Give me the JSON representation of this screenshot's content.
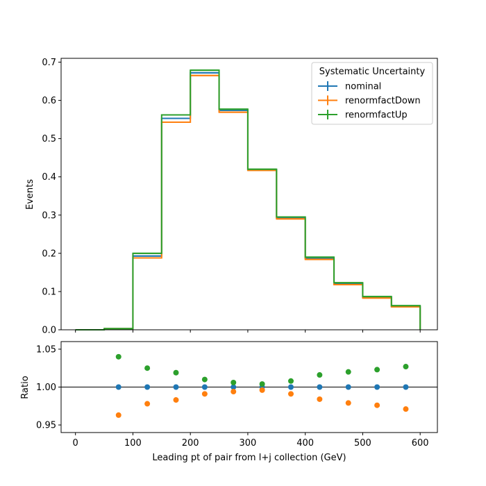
{
  "chart_data": [
    {
      "type": "line",
      "panel": "main",
      "ylabel": "Events",
      "xlabel": "",
      "xlim": [
        -25,
        630
      ],
      "ylim": [
        0,
        0.71
      ],
      "grid": false,
      "legend": {
        "title": "Systematic Uncertainty",
        "placement": "top-right"
      },
      "bin_edges": [
        0,
        50,
        100,
        150,
        200,
        250,
        300,
        350,
        400,
        450,
        500,
        550,
        600
      ],
      "x_ticks": [
        0,
        100,
        200,
        300,
        400,
        500,
        600
      ],
      "y_ticks": [
        0.0,
        0.1,
        0.2,
        0.3,
        0.4,
        0.5,
        0.6,
        0.7
      ],
      "y_tick_labels": [
        "0.0",
        "0.1",
        "0.2",
        "0.3",
        "0.4",
        "0.5",
        "0.6",
        "0.7"
      ],
      "series": [
        {
          "name": "nominal",
          "color": "#1f77b4",
          "values": [
            0.0,
            0.003,
            0.193,
            0.553,
            0.672,
            0.574,
            0.419,
            0.293,
            0.187,
            0.12,
            0.085,
            0.061
          ]
        },
        {
          "name": "renormfactDown",
          "color": "#ff7f0e",
          "values": [
            0.0,
            0.003,
            0.188,
            0.543,
            0.665,
            0.569,
            0.417,
            0.29,
            0.184,
            0.118,
            0.083,
            0.06
          ]
        },
        {
          "name": "renormfactUp",
          "color": "#2ca02c",
          "values": [
            0.0,
            0.003,
            0.2,
            0.562,
            0.679,
            0.577,
            0.42,
            0.295,
            0.19,
            0.123,
            0.087,
            0.063
          ]
        }
      ]
    },
    {
      "type": "scatter",
      "panel": "ratio",
      "ylabel": "Ratio",
      "xlabel": "Leading pt of pair from l+j collection (GeV)",
      "xlim": [
        -25,
        630
      ],
      "ylim": [
        0.94,
        1.06
      ],
      "reference_line": 1.0,
      "x_ticks": [
        0,
        100,
        200,
        300,
        400,
        500,
        600
      ],
      "x_tick_labels": [
        "0",
        "100",
        "200",
        "300",
        "400",
        "500",
        "600"
      ],
      "y_ticks": [
        0.95,
        1.0,
        1.05
      ],
      "y_tick_labels": [
        "0.95",
        "1.00",
        "1.05"
      ],
      "x": [
        75,
        125,
        175,
        225,
        275,
        325,
        375,
        425,
        475,
        525,
        575
      ],
      "series": [
        {
          "name": "nominal",
          "color": "#1f77b4",
          "values": [
            1.0,
            1.0,
            1.0,
            1.0,
            1.0,
            1.0,
            1.0,
            1.0,
            1.0,
            1.0,
            1.0
          ]
        },
        {
          "name": "renormfactDown",
          "color": "#ff7f0e",
          "values": [
            0.963,
            0.978,
            0.983,
            0.991,
            0.994,
            0.996,
            0.991,
            0.984,
            0.979,
            0.976,
            0.971
          ]
        },
        {
          "name": "renormfactUp",
          "color": "#2ca02c",
          "values": [
            1.04,
            1.025,
            1.019,
            1.01,
            1.006,
            1.004,
            1.008,
            1.016,
            1.02,
            1.023,
            1.027
          ]
        }
      ]
    }
  ]
}
